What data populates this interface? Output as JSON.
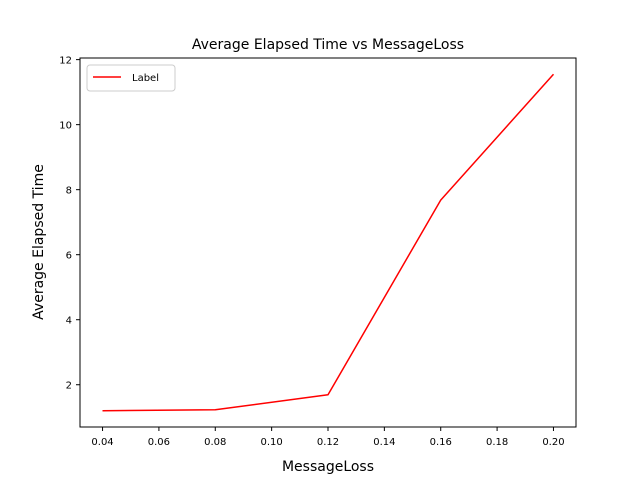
{
  "chart_data": {
    "type": "line",
    "title": "Average Elapsed Time vs MessageLoss",
    "xlabel": "MessageLoss",
    "ylabel": "Average Elapsed Time",
    "xlim": [
      0.032,
      0.208
    ],
    "ylim": [
      0.7,
      12.05
    ],
    "xticks": [
      0.04,
      0.06,
      0.08,
      0.1,
      0.12,
      0.14,
      0.16,
      0.18,
      0.2
    ],
    "xtick_labels": [
      "0.04",
      "0.06",
      "0.08",
      "0.10",
      "0.12",
      "0.14",
      "0.16",
      "0.18",
      "0.20"
    ],
    "yticks": [
      2,
      4,
      6,
      8,
      10,
      12
    ],
    "ytick_labels": [
      "2",
      "4",
      "6",
      "8",
      "10",
      "12"
    ],
    "grid": false,
    "legend_position": "top-left",
    "series": [
      {
        "name": "Label",
        "color": "#ff0000",
        "x": [
          0.04,
          0.08,
          0.12,
          0.16,
          0.2
        ],
        "y": [
          1.2,
          1.23,
          1.69,
          7.68,
          11.55
        ]
      }
    ]
  }
}
